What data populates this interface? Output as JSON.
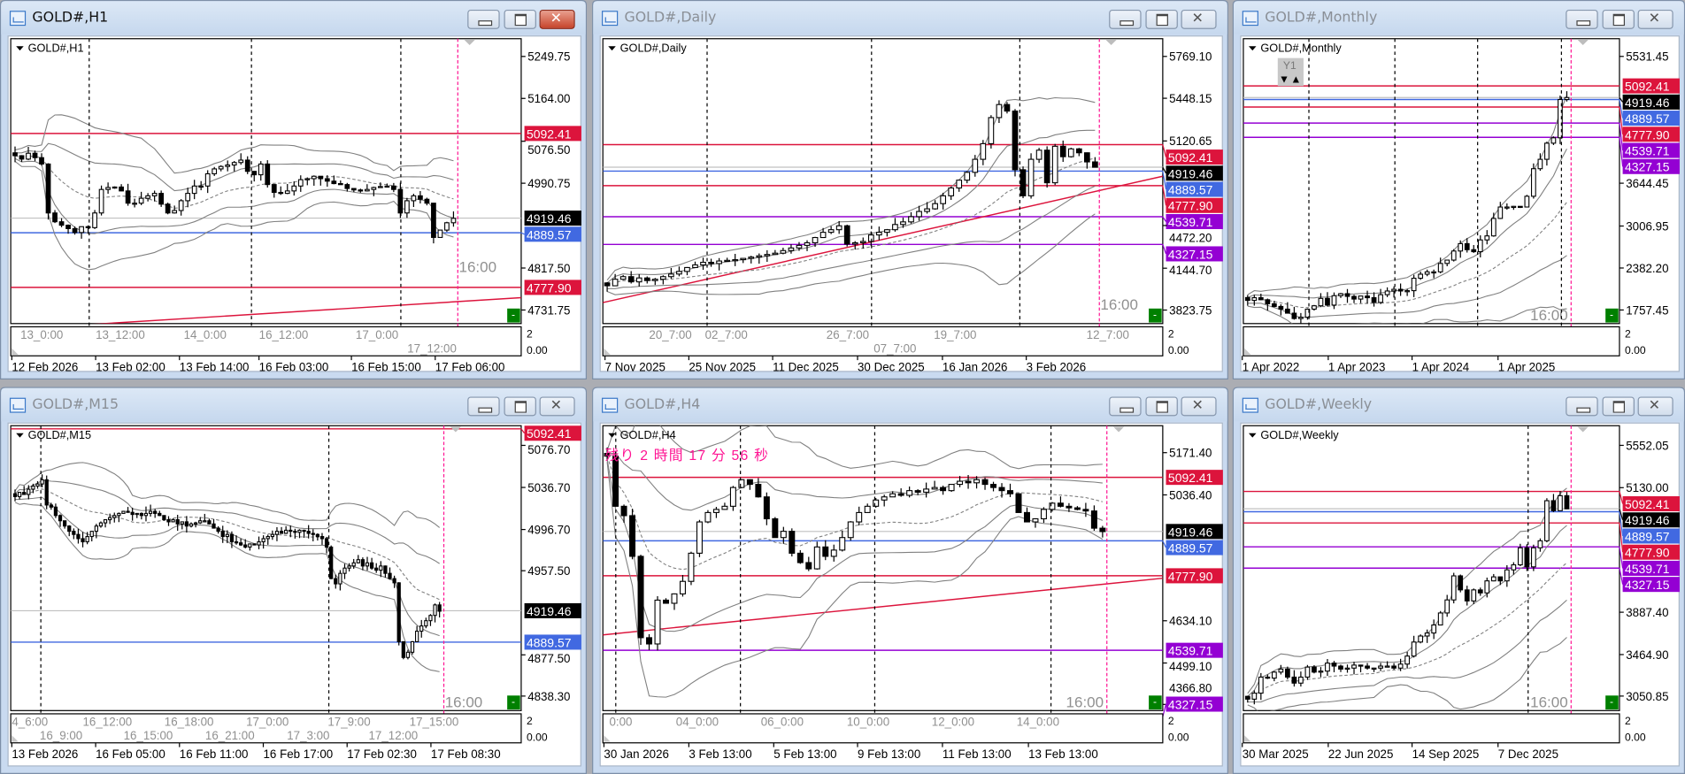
{
  "colors": {
    "resistance": "#dc143c",
    "support_blue": "#4169e1",
    "purple": "#9400d3",
    "current": "#000000",
    "time_marker": "#ff1493",
    "band": "#808080",
    "green_button": "#008000"
  },
  "common": {
    "time_marker_label": "16:00",
    "sub_scale_top": "2",
    "sub_scale_bottom": "0.00",
    "collapse_button": "-"
  },
  "countdown": "残り 2 時間 17 分 56 秒",
  "y1_box": {
    "label": "Y1",
    "down": "▼",
    "up": "▲"
  },
  "windows": [
    {
      "title": "GOLD#,H1",
      "chart_label": "GOLD#,H1",
      "active": true,
      "ylim": [
        4704,
        5286
      ],
      "ticks": [
        "5249.75",
        "5164.00",
        "5076.50",
        "4990.75",
        "4817.50",
        "4731.75"
      ],
      "current": {
        "price": 4919.46,
        "label": "4919.46"
      },
      "levels": [
        {
          "price": 5092.41,
          "label": "5092.41",
          "color": "#dc143c"
        },
        {
          "price": 4889.57,
          "label": "4889.57",
          "color": "#4169e1"
        },
        {
          "price": 4777.9,
          "label": "4777.90",
          "color": "#dc143c"
        }
      ],
      "trend": [
        4692,
        4757
      ],
      "sub_labels": [
        "13_0:00",
        "13_12:00",
        "14_0:00",
        "16_12:00",
        "17_0:00",
        "17_12:00"
      ],
      "date_labels": [
        "12 Feb 2026",
        "13 Feb 02:00",
        "13 Feb 14:00",
        "16 Feb 03:00",
        "16 Feb 15:00",
        "17 Feb 06:00"
      ],
      "closes": [
        5047,
        5040,
        5052,
        5043,
        5030,
        4930,
        4912,
        4905,
        4898,
        4890,
        4902,
        4900,
        4930,
        4978,
        4982,
        4983,
        4975,
        4950,
        4950,
        4960,
        4965,
        4970,
        4948,
        4930,
        4935,
        4955,
        4970,
        4985,
        4985,
        5010,
        5020,
        5025,
        5028,
        5033,
        5038,
        5015,
        5008,
        5030,
        4988,
        4972,
        4970,
        4975,
        4985,
        4998,
        5000,
        5005,
        5000,
        4995,
        4990,
        4988,
        4980,
        4977,
        4975,
        4978,
        4982,
        4984,
        4985,
        4978,
        4930,
        4955,
        4965,
        4958,
        4950,
        4880,
        4895,
        4910,
        4919
      ]
    },
    {
      "title": "GOLD#,Daily",
      "chart_label": "GOLD#,Daily",
      "active": false,
      "ylim": [
        3720,
        5905
      ],
      "ticks": [
        "5769.10",
        "5448.15",
        "5120.65",
        "4472.20",
        "4144.70",
        "3823.75"
      ],
      "current": {
        "price": 4919.46,
        "label": "4919.46"
      },
      "levels": [
        {
          "price": 5092.41,
          "label": "5092.41",
          "color": "#dc143c"
        },
        {
          "price": 4889.57,
          "label": "4889.57",
          "color": "#4169e1"
        },
        {
          "price": 4777.9,
          "label": "4777.90",
          "color": "#dc143c"
        },
        {
          "price": 4539.71,
          "label": "4539.71",
          "color": "#9400d3"
        },
        {
          "price": 4327.15,
          "label": "4327.15",
          "color": "#9400d3"
        }
      ],
      "trend": [
        3881,
        4850
      ],
      "sub_labels": [
        "20_7:00",
        "02_7:00",
        "26_7:00",
        "07_7:00",
        "19_7:00",
        "12_7:00"
      ],
      "date_labels": [
        "7 Nov 2025",
        "25 Nov 2025",
        "11 Dec 2025",
        "30 Dec 2025",
        "16 Jan 2026",
        "3 Feb 2026"
      ],
      "closes": [
        4010,
        4060,
        4080,
        4040,
        4070,
        4050,
        4060,
        4080,
        4100,
        4120,
        4150,
        4170,
        4190,
        4180,
        4200,
        4205,
        4210,
        4220,
        4230,
        4240,
        4250,
        4260,
        4280,
        4300,
        4320,
        4340,
        4380,
        4420,
        4440,
        4470,
        4330,
        4340,
        4350,
        4400,
        4420,
        4440,
        4480,
        4500,
        4540,
        4580,
        4600,
        4640,
        4700,
        4760,
        4820,
        4880,
        4980,
        5100,
        5300,
        5400,
        5350,
        4900,
        4700,
        4980,
        5050,
        4800,
        5080,
        5000,
        5060,
        5030,
        4960,
        4919
      ]
    },
    {
      "title": "GOLD#,Monthly",
      "chart_label": "GOLD#,Monthly",
      "active": false,
      "ylim": [
        1555,
        5795
      ],
      "ticks": [
        "5531.45",
        "3644.45",
        "3006.95",
        "2382.20",
        "1757.45"
      ],
      "current": {
        "price": 4919.46,
        "label": "4919.46"
      },
      "levels": [
        {
          "price": 5092.41,
          "label": "5092.41",
          "color": "#dc143c"
        },
        {
          "price": 4889.57,
          "label": "4889.57",
          "color": "#4169e1"
        },
        {
          "price": 4777.9,
          "label": "4777.90",
          "color": "#dc143c"
        },
        {
          "price": 4539.71,
          "label": "4539.71",
          "color": "#9400d3"
        },
        {
          "price": 4327.15,
          "label": "4327.15",
          "color": "#9400d3"
        }
      ],
      "trend": null,
      "sub_labels": [],
      "date_labels": [
        "1 Apr 2022",
        "1 Apr 2023",
        "1 Apr 2024",
        "1 Apr 2025"
      ],
      "closes": [
        1900,
        1940,
        1910,
        1850,
        1810,
        1770,
        1710,
        1630,
        1650,
        1770,
        1820,
        1930,
        1830,
        1970,
        2000,
        1960,
        1920,
        1965,
        1940,
        1870,
        1985,
        2040,
        2065,
        2040,
        2045,
        2230,
        2290,
        2325,
        2325,
        2450,
        2500,
        2635,
        2745,
        2655,
        2625,
        2800,
        2860,
        3120,
        3290,
        3290,
        3300,
        3290,
        3450,
        3860,
        4000,
        4240,
        4320,
        4890,
        4919
      ]
    },
    {
      "title": "GOLD#,M15",
      "chart_label": "GOLD#,M15",
      "active": false,
      "ylim": [
        4824.5,
        5095.4
      ],
      "ticks": [
        "5076.70",
        "5036.70",
        "4996.70",
        "4957.50",
        "4877.50",
        "4838.30"
      ],
      "current": {
        "price": 4919.46,
        "label": "4919.46"
      },
      "levels": [
        {
          "price": 5092.41,
          "label": "5092.41",
          "color": "#dc143c"
        },
        {
          "price": 4889.57,
          "label": "4889.57",
          "color": "#4169e1"
        }
      ],
      "trend": null,
      "sub_labels": [
        "4_6:00",
        "16_9:00",
        "16_12:00",
        "16_15:00",
        "16_18:00",
        "16_21:00",
        "17_0:00",
        "17_3:00",
        "17_9:00",
        "17_12:00",
        "17_15:00"
      ],
      "date_labels": [
        "13 Feb 2026",
        "16 Feb 05:00",
        "16 Feb 11:00",
        "16 Feb 17:00",
        "17 Feb 02:30",
        "17 Feb 08:30"
      ],
      "closes": [
        5028,
        5032,
        5030,
        5035,
        5038,
        5040,
        5044,
        5020,
        5018,
        5010,
        5005,
        5000,
        4995,
        4992,
        4988,
        4985,
        4990,
        4995,
        5000,
        5003,
        5006,
        5008,
        5010,
        5012,
        5014,
        5013,
        5011,
        5012,
        5010,
        5012,
        5014,
        5012,
        5010,
        5006,
        5004,
        5006,
        5002,
        5004,
        5000,
        5002,
        5003,
        5005,
        5005,
        5002,
        4998,
        4995,
        4990,
        4992,
        4985,
        4984,
        4982,
        4980,
        4983,
        4982,
        4985,
        4988,
        4990,
        4992,
        4995,
        4993,
        4996,
        4995,
        4994,
        4996,
        4995,
        4993,
        4992,
        4990,
        4988,
        4980,
        4950,
        4945,
        4955,
        4960,
        4962,
        4965,
        4968,
        4962,
        4965,
        4960,
        4958,
        4962,
        4955,
        4950,
        4946,
        4890,
        4875,
        4880,
        4890,
        4900,
        4905,
        4910,
        4915,
        4925,
        4919
      ]
    },
    {
      "title": "GOLD#,H4",
      "chart_label": "GOLD#,H4",
      "active": false,
      "ylim": [
        4347,
        5257.5
      ],
      "ticks": [
        "5171.40",
        "5036.40",
        "4634.10",
        "4499.10",
        "4366.80"
      ],
      "current": {
        "price": 4919.46,
        "label": "4919.46"
      },
      "levels": [
        {
          "price": 5092.41,
          "label": "5092.41",
          "color": "#dc143c"
        },
        {
          "price": 4889.57,
          "label": "4889.57",
          "color": "#4169e1"
        },
        {
          "price": 4777.9,
          "label": "4777.90",
          "color": "#dc143c"
        },
        {
          "price": 4539.71,
          "label": "4539.71",
          "color": "#9400d3"
        },
        {
          "price": 4327.15,
          "label": "4327.15",
          "color": "#9400d3"
        }
      ],
      "trend": [
        4589,
        4770
      ],
      "sub_labels": [
        "0:00",
        "04_0:00",
        "06_0:00",
        "10_0:00",
        "12_0:00",
        "14_0:00"
      ],
      "date_labels": [
        "30 Jan 2026",
        "3 Feb 13:00",
        "5 Feb 13:00",
        "9 Feb 13:00",
        "11 Feb 13:00",
        "13 Feb 13:00"
      ],
      "closes": [
        5160,
        5000,
        4970,
        4840,
        4580,
        4560,
        4700,
        4690,
        4720,
        4760,
        4850,
        4950,
        4980,
        4990,
        5000,
        5060,
        5085,
        5070,
        5030,
        4960,
        4900,
        4920,
        4850,
        4820,
        4800,
        4870,
        4840,
        4860,
        4900,
        4950,
        4980,
        5000,
        5020,
        5030,
        5040,
        5035,
        5050,
        5045,
        5055,
        5060,
        5050,
        5070,
        5080,
        5075,
        5085,
        5070,
        5060,
        5050,
        5040,
        4980,
        4950,
        4960,
        4990,
        5010,
        5000,
        4995,
        4990,
        4985,
        4930,
        4919
      ]
    },
    {
      "title": "GOLD#,Weekly",
      "chart_label": "GOLD#,Weekly",
      "active": false,
      "ylim": [
        2906,
        5748
      ],
      "ticks": [
        "5552.05",
        "5130.00",
        "3887.40",
        "3464.90",
        "3050.85"
      ],
      "current": {
        "price": 4919.46,
        "label": "4919.46"
      },
      "levels": [
        {
          "price": 5092.41,
          "label": "5092.41",
          "color": "#dc143c"
        },
        {
          "price": 4889.57,
          "label": "4889.57",
          "color": "#4169e1"
        },
        {
          "price": 4777.9,
          "label": "4777.90",
          "color": "#dc143c"
        },
        {
          "price": 4539.71,
          "label": "4539.71",
          "color": "#9400d3"
        },
        {
          "price": 4327.15,
          "label": "4327.15",
          "color": "#9400d3"
        }
      ],
      "trend": null,
      "sub_labels": [],
      "date_labels": [
        "30 Mar 2025",
        "22 Jun 2025",
        "14 Sep 2025",
        "7 Dec 2025"
      ],
      "closes": [
        3020,
        3080,
        3240,
        3230,
        3290,
        3320,
        3240,
        3180,
        3240,
        3340,
        3290,
        3300,
        3380,
        3350,
        3320,
        3330,
        3360,
        3350,
        3330,
        3330,
        3350,
        3350,
        3330,
        3370,
        3450,
        3590,
        3650,
        3680,
        3760,
        3880,
        4010,
        4250,
        4110,
        4000,
        4110,
        4080,
        4200,
        4240,
        4200,
        4310,
        4360,
        4530,
        4340,
        4530,
        4600,
        5000,
        4900,
        5050,
        4919
      ]
    }
  ]
}
